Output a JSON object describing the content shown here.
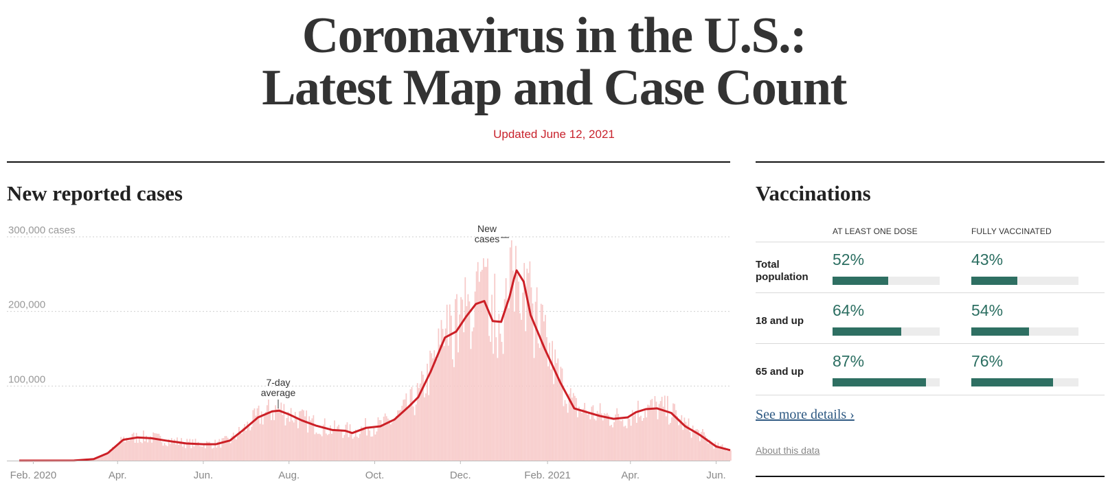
{
  "header": {
    "title_line1": "Coronavirus in the U.S.:",
    "title_line2": "Latest Map and Case Count",
    "updated": "Updated June 12, 2021"
  },
  "cases": {
    "title": "New reported cases",
    "bar_color": "#f7c9c8",
    "line_color": "#cc1f26",
    "chart_data": {
      "type": "area",
      "x_start": "2020-01-22",
      "x_end": "2021-06-11",
      "ylim": [
        0,
        300000
      ],
      "yticks": [
        {
          "value": 300000,
          "label": "300,000 cases"
        },
        {
          "value": 200000,
          "label": "200,000"
        },
        {
          "value": 100000,
          "label": "100,000"
        }
      ],
      "xticks": [
        {
          "date": "2020-02-01",
          "label": "Feb. 2020"
        },
        {
          "date": "2020-04-01",
          "label": "Apr."
        },
        {
          "date": "2020-06-01",
          "label": "Jun."
        },
        {
          "date": "2020-08-01",
          "label": "Aug."
        },
        {
          "date": "2020-10-01",
          "label": "Oct."
        },
        {
          "date": "2020-12-01",
          "label": "Dec."
        },
        {
          "date": "2021-02-01",
          "label": "Feb. 2021"
        },
        {
          "date": "2021-04-01",
          "label": "Apr."
        },
        {
          "date": "2021-06-01",
          "label": "Jun."
        }
      ],
      "grid": true,
      "series": [
        {
          "name": "7-day average",
          "x": [
            "2020-01-22",
            "2020-03-01",
            "2020-03-15",
            "2020-03-25",
            "2020-04-05",
            "2020-04-15",
            "2020-04-25",
            "2020-05-05",
            "2020-05-20",
            "2020-06-01",
            "2020-06-10",
            "2020-06-20",
            "2020-06-30",
            "2020-07-10",
            "2020-07-20",
            "2020-07-25",
            "2020-08-01",
            "2020-08-10",
            "2020-08-20",
            "2020-09-01",
            "2020-09-10",
            "2020-09-15",
            "2020-09-25",
            "2020-10-05",
            "2020-10-15",
            "2020-10-25",
            "2020-11-01",
            "2020-11-10",
            "2020-11-20",
            "2020-11-28",
            "2020-12-05",
            "2020-12-12",
            "2020-12-18",
            "2020-12-24",
            "2020-12-30",
            "2021-01-05",
            "2021-01-08",
            "2021-01-10",
            "2021-01-15",
            "2021-01-20",
            "2021-01-30",
            "2021-02-10",
            "2021-02-20",
            "2021-03-01",
            "2021-03-10",
            "2021-03-20",
            "2021-03-30",
            "2021-04-05",
            "2021-04-12",
            "2021-04-20",
            "2021-04-30",
            "2021-05-10",
            "2021-05-20",
            "2021-06-01",
            "2021-06-11"
          ],
          "y": [
            0,
            100,
            2000,
            10000,
            28000,
            31000,
            30000,
            27000,
            23000,
            22000,
            22000,
            27000,
            42000,
            58000,
            66000,
            67000,
            62000,
            54000,
            47000,
            41000,
            40000,
            37000,
            44000,
            46000,
            55000,
            72000,
            85000,
            120000,
            165000,
            173000,
            193000,
            210000,
            214000,
            187000,
            186000,
            220000,
            243000,
            255000,
            240000,
            195000,
            150000,
            105000,
            70000,
            65000,
            60000,
            56000,
            58000,
            65000,
            69000,
            70000,
            64000,
            46000,
            35000,
            19000,
            14000
          ]
        }
      ]
    },
    "annotations": {
      "avg_line1": "7-day",
      "avg_line2": "average",
      "cases_line1": "New",
      "cases_line2": "cases"
    }
  },
  "vaccinations": {
    "title": "Vaccinations",
    "col1": "AT LEAST ONE DOSE",
    "col2": "FULLY VACCINATED",
    "rows": [
      {
        "label_line1": "Total",
        "label_line2": "population",
        "one_dose": 52,
        "one_dose_label": "52%",
        "fully": 43,
        "fully_label": "43%"
      },
      {
        "label_line1": "18 and up",
        "label_line2": "",
        "one_dose": 64,
        "one_dose_label": "64%",
        "fully": 54,
        "fully_label": "54%"
      },
      {
        "label_line1": "65 and up",
        "label_line2": "",
        "one_dose": 87,
        "one_dose_label": "87%",
        "fully": 76,
        "fully_label": "76%"
      }
    ],
    "see_more": "See more details ›",
    "about": "About this data"
  }
}
